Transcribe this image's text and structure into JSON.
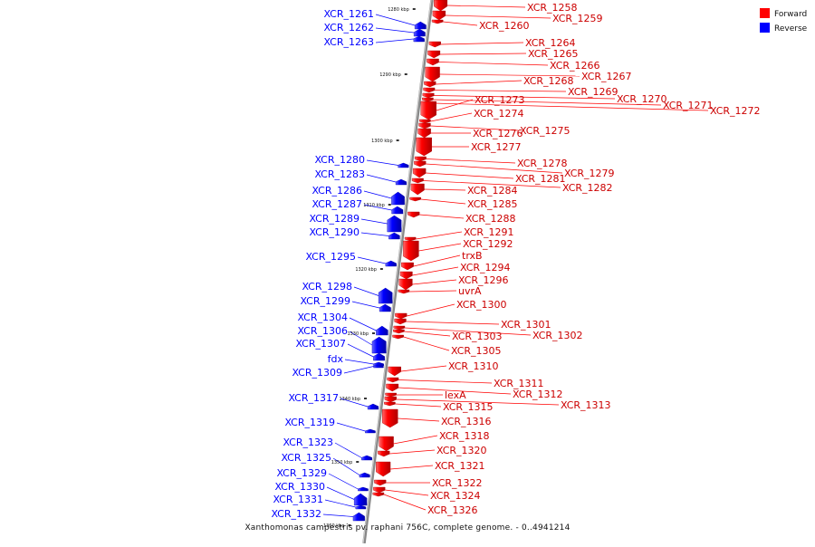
{
  "caption": "Xanthomonas campestris pv. raphani 756C, complete genome. - 0..4941214",
  "legend": [
    {
      "label": "Forward",
      "color": "#ff0000"
    },
    {
      "label": "Reverse",
      "color": "#0000ff"
    }
  ],
  "colors": {
    "forward": "#ff0000",
    "reverse": "#0000ff",
    "backbone": "#777777"
  },
  "scale_marks": [
    "1280 kbp",
    "1290 kbp",
    "1300 kbp",
    "1310 kbp",
    "1320 kbp",
    "1330 kbp",
    "1340 kbp",
    "1350 kbp",
    "1360 kbp"
  ],
  "reverse_genes": [
    "XCR_1261",
    "XCR_1262",
    "XCR_1263",
    "XCR_1280",
    "XCR_1283",
    "XCR_1286",
    "XCR_1287",
    "XCR_1289",
    "XCR_1290",
    "XCR_1295",
    "XCR_1298",
    "XCR_1299",
    "XCR_1304",
    "XCR_1306",
    "XCR_1307",
    "fdx",
    "XCR_1309",
    "XCR_1317",
    "XCR_1319",
    "XCR_1323",
    "XCR_1325",
    "XCR_1329",
    "XCR_1330",
    "XCR_1331",
    "XCR_1332"
  ],
  "forward_genes": [
    "XCR_1258",
    "XCR_1259",
    "XCR_1260",
    "XCR_1264",
    "XCR_1265",
    "XCR_1266",
    "XCR_1267",
    "XCR_1268",
    "XCR_1269",
    "XCR_1270",
    "XCR_1271",
    "XCR_1272",
    "XCR_1273",
    "XCR_1274",
    "XCR_1275",
    "XCR_1276",
    "XCR_1277",
    "XCR_1278",
    "XCR_1279",
    "XCR_1281",
    "XCR_1282",
    "XCR_1284",
    "XCR_1285",
    "XCR_1288",
    "XCR_1291",
    "XCR_1292",
    "trxB",
    "XCR_1294",
    "XCR_1296",
    "uvrA",
    "XCR_1300",
    "XCR_1301",
    "XCR_1302",
    "XCR_1303",
    "XCR_1305",
    "XCR_1310",
    "XCR_1311",
    "XCR_1312",
    "lexA",
    "XCR_1313",
    "XCR_1315",
    "XCR_1316",
    "XCR_1318",
    "XCR_1320",
    "XCR_1321",
    "XCR_1322",
    "XCR_1324",
    "XCR_1326"
  ]
}
